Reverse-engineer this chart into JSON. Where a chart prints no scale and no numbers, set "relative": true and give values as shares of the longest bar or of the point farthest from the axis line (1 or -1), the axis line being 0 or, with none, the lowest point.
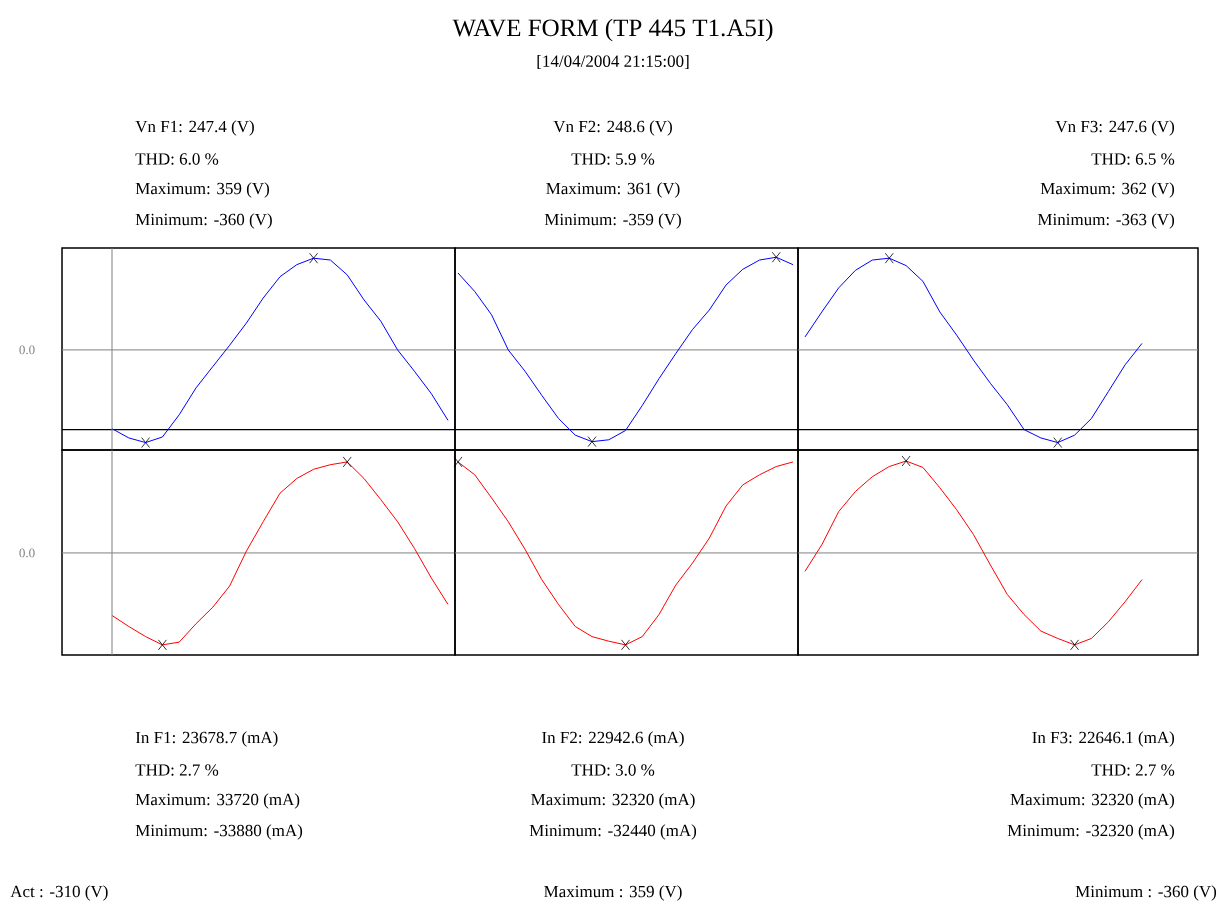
{
  "chart_data": [
    {
      "type": "line",
      "relative": true,
      "categories": [
        null,
        null,
        null,
        null,
        null,
        null,
        null,
        null,
        null,
        null,
        null,
        null,
        null,
        null,
        null,
        null,
        null,
        null,
        null,
        null,
        null
      ],
      "series": [
        {
          "color": "#0000ff",
          "values": [
            -0.85,
            -0.95,
            -1,
            -0.94,
            -0.7,
            -0.41,
            -0.18,
            0.05,
            0.29,
            0.56,
            0.79,
            0.92,
            0.99,
            0.97,
            0.81,
            0.54,
            0.31,
            0,
            -0.23,
            -0.47,
            -0.76
          ]
        }
      ],
      "ref_lines": [
        {
          "axis": "y",
          "value": -0.86,
          "color": "#000000"
        }
      ],
      "annotations": [
        "Vn F1: 247.4 (V)",
        "THD: 6.0 %",
        "Maximum: 359 (V)",
        "Minimum: -360 (V)",
        "0.0"
      ]
    },
    {
      "type": "line",
      "relative": true,
      "categories": [
        null,
        null,
        null,
        null,
        null,
        null,
        null,
        null,
        null,
        null,
        null,
        null,
        null,
        null,
        null,
        null,
        null,
        null,
        null,
        null,
        null
      ],
      "series": [
        {
          "color": "#0000ff",
          "values": [
            0.83,
            0.63,
            0.38,
            0,
            -0.23,
            -0.49,
            -0.74,
            -0.92,
            -0.99,
            -0.97,
            -0.87,
            -0.6,
            -0.31,
            -0.04,
            0.22,
            0.43,
            0.7,
            0.87,
            0.97,
            1,
            0.92
          ]
        }
      ],
      "ref_lines": [
        {
          "axis": "y",
          "value": -0.86,
          "color": "#000000"
        }
      ],
      "annotations": [
        "Vn F2: 248.6 (V)",
        "THD: 5.9 %",
        "Maximum: 361 (V)",
        "Minimum: -359 (V)"
      ]
    },
    {
      "type": "line",
      "relative": true,
      "categories": [
        null,
        null,
        null,
        null,
        null,
        null,
        null,
        null,
        null,
        null,
        null,
        null,
        null,
        null,
        null,
        null,
        null,
        null,
        null,
        null,
        null
      ],
      "series": [
        {
          "color": "#0000ff",
          "values": [
            0.14,
            0.41,
            0.67,
            0.86,
            0.97,
            0.99,
            0.91,
            0.74,
            0.41,
            0.16,
            -0.11,
            -0.36,
            -0.59,
            -0.86,
            -0.95,
            -1,
            -0.92,
            -0.74,
            -0.45,
            -0.16,
            0.07
          ]
        }
      ],
      "ref_lines": [
        {
          "axis": "y",
          "value": -0.86,
          "color": "#000000"
        }
      ],
      "annotations": [
        "Vn F3: 247.6 (V)",
        "THD: 6.5 %",
        "Maximum: 362 (V)",
        "Minimum: -363 (V)"
      ]
    },
    {
      "type": "line",
      "relative": true,
      "categories": [
        null,
        null,
        null,
        null,
        null,
        null,
        null,
        null,
        null,
        null,
        null,
        null,
        null,
        null,
        null,
        null,
        null,
        null,
        null,
        null,
        null
      ],
      "series": [
        {
          "color": "#ff0000",
          "values": [
            -0.68,
            -0.8,
            -0.91,
            -1,
            -0.97,
            -0.77,
            -0.59,
            -0.36,
            0.02,
            0.34,
            0.65,
            0.81,
            0.91,
            0.96,
            0.99,
            0.81,
            0.58,
            0.34,
            0.05,
            -0.27,
            -0.56
          ]
        }
      ],
      "annotations": [
        "In F1: 23678.7 (mA)",
        "THD: 2.7 %",
        "Maximum: 33720 (mA)",
        "Minimum: -33880 (mA)",
        "0.0"
      ]
    },
    {
      "type": "line",
      "relative": true,
      "categories": [
        null,
        null,
        null,
        null,
        null,
        null,
        null,
        null,
        null,
        null,
        null,
        null,
        null,
        null,
        null,
        null,
        null,
        null,
        null,
        null,
        null
      ],
      "series": [
        {
          "color": "#ff0000",
          "values": [
            0.99,
            0.85,
            0.6,
            0.34,
            0.04,
            -0.29,
            -0.56,
            -0.8,
            -0.91,
            -0.96,
            -1,
            -0.91,
            -0.67,
            -0.35,
            -0.11,
            0.16,
            0.51,
            0.74,
            0.85,
            0.94,
            0.99
          ]
        }
      ],
      "annotations": [
        "In F2: 22942.6 (mA)",
        "THD: 3.0 %",
        "Maximum: 32320 (mA)",
        "Minimum: -32440 (mA)"
      ]
    },
    {
      "type": "line",
      "relative": true,
      "categories": [
        null,
        null,
        null,
        null,
        null,
        null,
        null,
        null,
        null,
        null,
        null,
        null,
        null,
        null,
        null,
        null,
        null,
        null,
        null,
        null,
        null
      ],
      "series": [
        {
          "color": "#ff0000",
          "values": [
            -0.2,
            0.09,
            0.45,
            0.67,
            0.83,
            0.94,
            1,
            0.93,
            0.71,
            0.47,
            0.2,
            -0.13,
            -0.45,
            -0.67,
            -0.85,
            -0.93,
            -1,
            -0.93,
            -0.75,
            -0.53,
            -0.29
          ]
        }
      ],
      "annotations": [
        "In F3: 22646.1 (mA)",
        "THD: 2.7 %",
        "Maximum: 32320 (mA)",
        "Minimum: -32320 (mA)"
      ]
    },
    {
      "type": "other",
      "title": "WAVE FORM (TP 445 T1.A5I)",
      "subtitle": "[14/04/2004 21:15:00]",
      "annotations": [
        "Act : -310 (V)",
        "Maximum : 359 (V)",
        "Minimum : -360 (V)"
      ]
    }
  ]
}
